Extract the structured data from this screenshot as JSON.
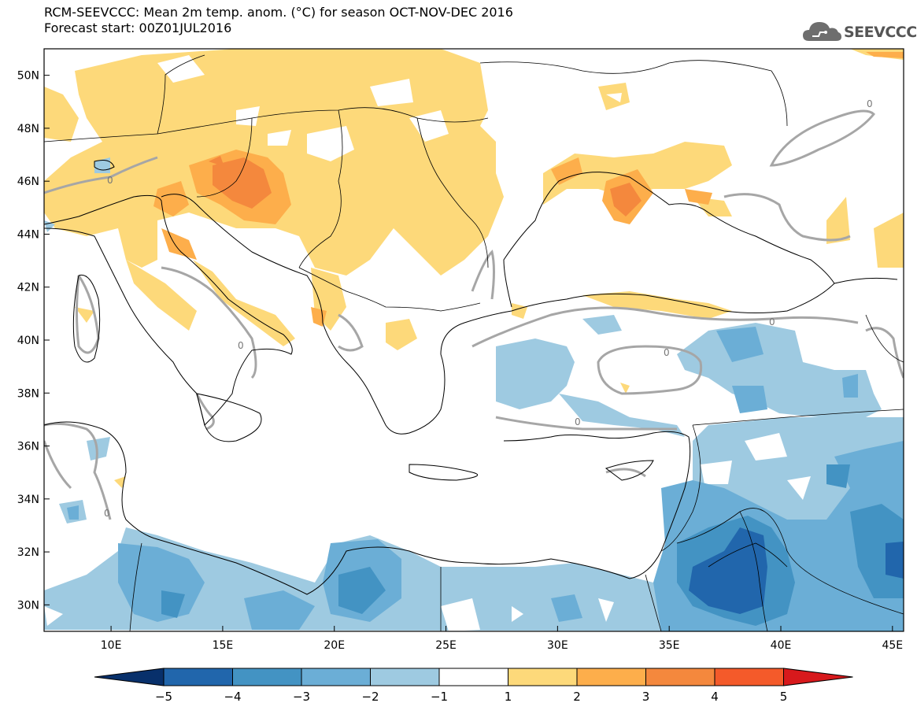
{
  "title": "RCM-SEEVCCC: Mean 2m temp. anom. (°C) for season OCT-NOV-DEC 2016",
  "subtitle": "Forecast start: 00Z01JUL2016",
  "logo": {
    "text": "SEEVCCC",
    "icon": "cloud-icon"
  },
  "map": {
    "lon_range": [
      7,
      45.5
    ],
    "lat_range": [
      29,
      51
    ],
    "lat_ticks": [
      "50N",
      "48N",
      "46N",
      "44N",
      "42N",
      "40N",
      "38N",
      "36N",
      "34N",
      "32N",
      "30N"
    ],
    "lon_ticks": [
      "10E",
      "15E",
      "20E",
      "25E",
      "30E",
      "35E",
      "40E",
      "45E"
    ],
    "contour_label": "0"
  },
  "colorbar": {
    "labels": [
      "-5",
      "-4",
      "-3",
      "-2",
      "-1",
      "1",
      "2",
      "3",
      "4",
      "5"
    ],
    "colors": [
      "#08306b",
      "#2166ac",
      "#4393c3",
      "#6baed6",
      "#9ecae1",
      "#ffffff",
      "#fdd97a",
      "#fdae4b",
      "#f4883d",
      "#f45a2a",
      "#d7191c"
    ]
  }
}
